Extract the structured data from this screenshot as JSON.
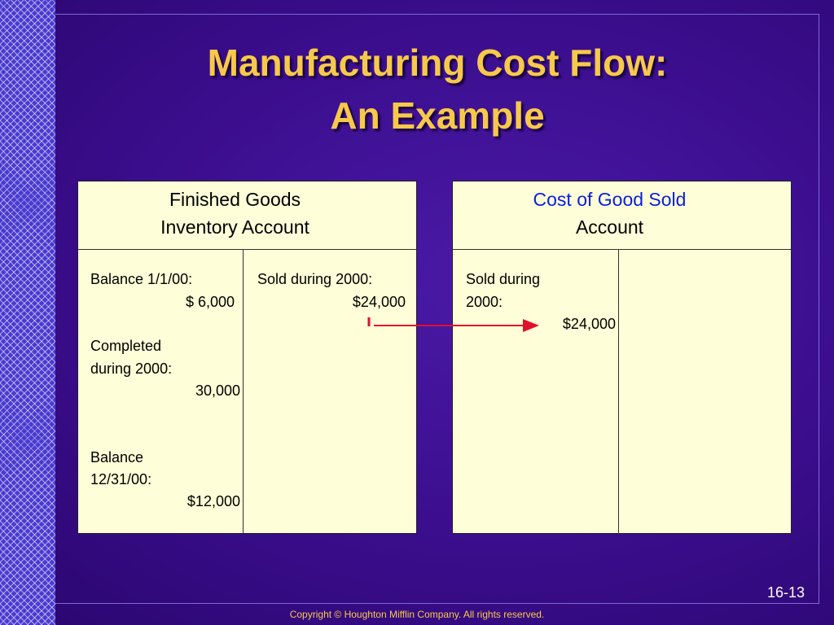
{
  "header": {
    "title": [
      "Manufacturing Cost Flow:",
      "An Example"
    ]
  },
  "accounts": [
    {
      "title": [
        "Finished Goods",
        "Inventory Account"
      ],
      "debit": [
        "Balance 1/1/00:",
        "$ 6,000",
        "Completed",
        "during 2000:",
        "30,000",
        "Balance",
        "12/31/00:",
        "$12,000"
      ],
      "credit": [
        "Sold during 2000:",
        "$24,000"
      ]
    },
    {
      "title": [
        "Cost of Good Sold",
        "Account"
      ],
      "debit": [
        "Sold during",
        "2000:",
        "$24,000"
      ]
    }
  ],
  "slide_number": "16-13",
  "footer": "Copyright © Houghton Mifflin Company.  All rights reserved."
}
